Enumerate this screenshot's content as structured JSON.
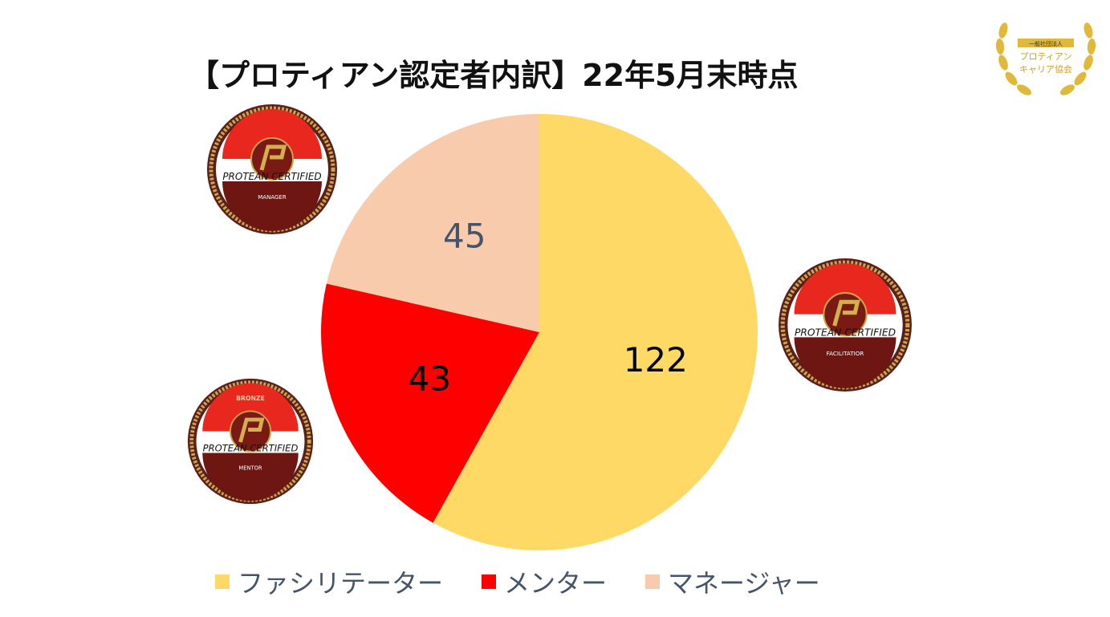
{
  "chart_data": {
    "type": "pie",
    "title": "【プロティアン認定者内訳】22年5月末時点",
    "categories": [
      "ファシリテーター",
      "メンター",
      "マネージャー"
    ],
    "values": [
      122,
      43,
      45
    ],
    "colors": [
      "#FFD966",
      "#FF0000",
      "#F8CBAD"
    ],
    "label_colors": [
      "#000000",
      "#000000",
      "#44546A"
    ],
    "start_angle_deg": 0,
    "direction": "clockwise",
    "legend_position": "bottom"
  },
  "badges": [
    {
      "top_text": "",
      "main_text": "PROTEAN CERTIFIED",
      "sub_text": "MANAGER"
    },
    {
      "top_text": "",
      "main_text": "PROTEAN CERTIFIED",
      "sub_text": "FACILITATIOR"
    },
    {
      "top_text": "BRONZE",
      "main_text": "PROTEAN CERTIFIED",
      "sub_text": "MENTOR"
    }
  ],
  "logo": {
    "line1": "一般社団法人",
    "line2": "プロティアン",
    "line3": "キャリア協会"
  }
}
